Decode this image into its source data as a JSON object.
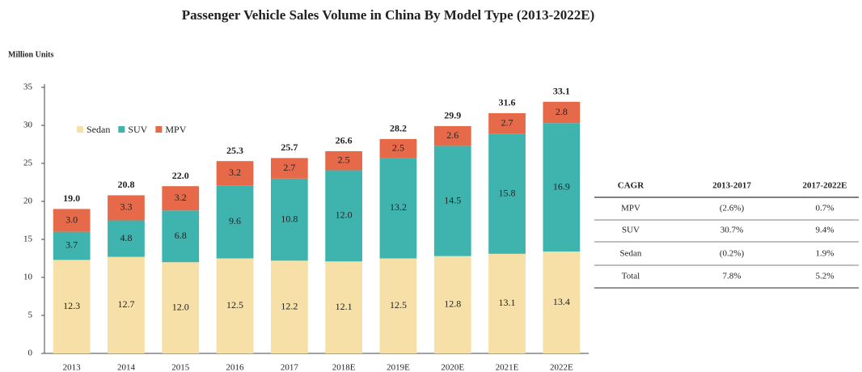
{
  "chart_data": {
    "type": "bar",
    "stacked": true,
    "title": "Passenger Vehicle Sales Volume in China By Model Type (2013-2022E)",
    "y_label": "Million Units",
    "categories": [
      "2013",
      "2014",
      "2015",
      "2016",
      "2017",
      "2018E",
      "2019E",
      "2020E",
      "2021E",
      "2022E"
    ],
    "series": [
      {
        "name": "Sedan",
        "color": "#f6e0a8",
        "values": [
          12.3,
          12.7,
          12.0,
          12.5,
          12.2,
          12.1,
          12.5,
          12.8,
          13.1,
          13.4
        ],
        "value_labels": [
          "12.3",
          "12.7",
          "12.0",
          "12.5",
          "12.2",
          "12.1",
          "12.5",
          "12.8",
          "13.1",
          "13.4"
        ]
      },
      {
        "name": "SUV",
        "color": "#3fb4ae",
        "values": [
          3.7,
          4.8,
          6.8,
          9.6,
          10.8,
          12.0,
          13.2,
          14.5,
          15.8,
          16.9
        ],
        "value_labels": [
          "3.7",
          "4.8",
          "6.8",
          "9.6",
          "10.8",
          "12.0",
          "13.2",
          "14.5",
          "15.8",
          "16.9"
        ]
      },
      {
        "name": "MPV",
        "color": "#e66a4a",
        "values": [
          3.0,
          3.3,
          3.2,
          3.2,
          2.7,
          2.5,
          2.5,
          2.6,
          2.7,
          2.8
        ],
        "value_labels": [
          "3.0",
          "3.3",
          "3.2",
          "3.2",
          "2.7",
          "2.5",
          "2.5",
          "2.6",
          "2.7",
          "2.8"
        ]
      }
    ],
    "totals": [
      19.0,
      20.8,
      22.0,
      25.3,
      25.7,
      26.6,
      28.2,
      29.9,
      31.6,
      33.1
    ],
    "total_labels": [
      "19.0",
      "20.8",
      "22.0",
      "25.3",
      "25.7",
      "26.6",
      "28.2",
      "29.9",
      "31.6",
      "33.1"
    ],
    "ylim": [
      0,
      35
    ],
    "yticks": [
      0,
      5,
      10,
      15,
      20,
      25,
      30,
      35
    ],
    "grid": false,
    "legend": "top-left"
  },
  "table": {
    "header": [
      "CAGR",
      "2013-2017",
      "2017-2022E"
    ],
    "rows": [
      [
        "MPV",
        "(2.6%)",
        "0.7%"
      ],
      [
        "SUV",
        "30.7%",
        "9.4%"
      ],
      [
        "Sedan",
        "(0.2%)",
        "1.9%"
      ],
      [
        "Total",
        "7.8%",
        "5.2%"
      ]
    ]
  }
}
